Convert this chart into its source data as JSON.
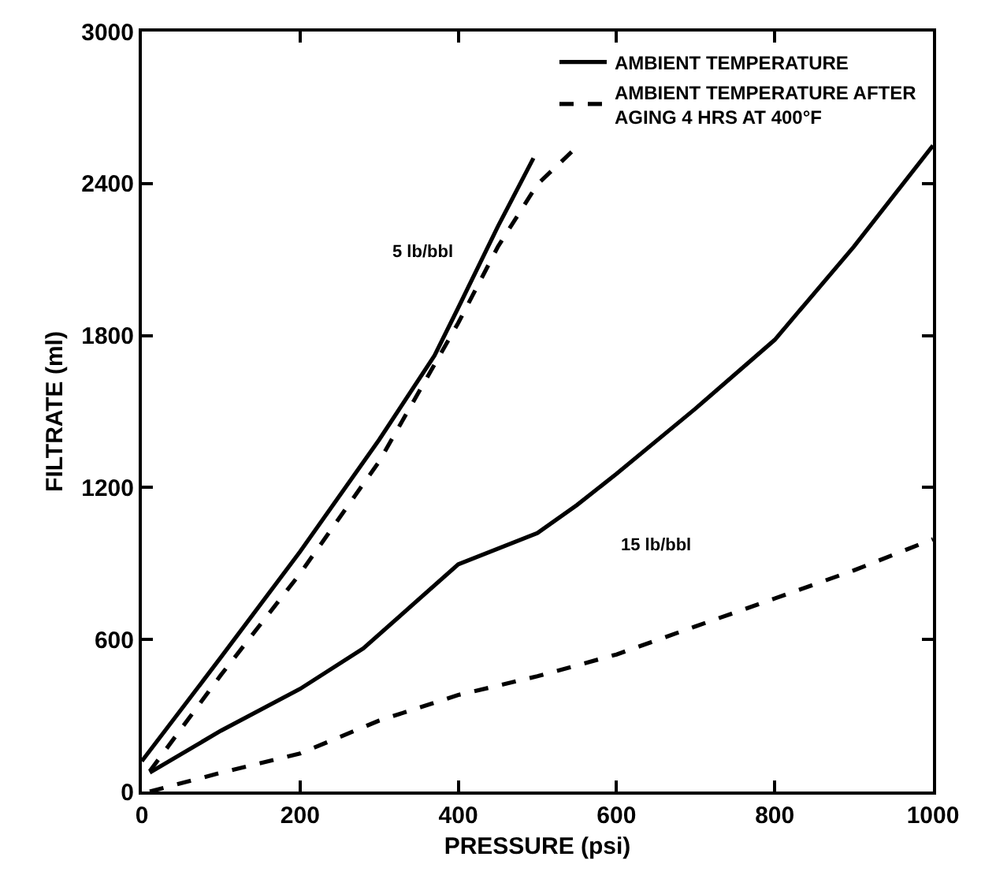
{
  "chart_data": {
    "type": "line",
    "xlabel": "PRESSURE (psi)",
    "ylabel": "FILTRATE (ml)",
    "xlim": [
      0,
      1000
    ],
    "xticks": [
      0,
      200,
      400,
      600,
      800,
      1000
    ],
    "ylim": [
      0,
      3000
    ],
    "yticks": [
      0,
      600,
      1200,
      1800,
      2400,
      3000
    ],
    "legend": "top right",
    "marker": "none",
    "series": [
      {
        "name": "AMBIENT TEMPERATURE",
        "color": "#000000",
        "line_style": "solid",
        "x": [
          0,
          100,
          200,
          300,
          370,
          400,
          450,
          495
        ],
        "values": [
          120,
          530,
          947,
          1389,
          1721,
          1910,
          2230,
          2500
        ]
      },
      {
        "name": "AMBIENT TEMPERATURE AFTER AGING 4 HRS AT 400°F",
        "color": "#000000",
        "line_style": "dashed",
        "x": [
          10,
          100,
          200,
          300,
          400,
          450,
          500,
          545
        ],
        "values": [
          80,
          460,
          860,
          1303,
          1850,
          2150,
          2397,
          2530
        ]
      },
      {
        "color": "#000000",
        "line_style": "solid",
        "x": [
          10,
          100,
          200,
          280,
          400,
          500,
          550,
          600,
          700,
          800,
          900,
          1000
        ],
        "values": [
          75,
          240,
          405,
          565,
          897,
          1020,
          1131,
          1254,
          1512,
          1783,
          2151,
          2550
        ]
      },
      {
        "color": "#000000",
        "line_style": "dashed",
        "x": [
          10,
          100,
          200,
          300,
          400,
          500,
          600,
          700,
          800,
          900,
          1000
        ],
        "values": [
          0,
          74,
          150,
          280,
          381,
          455,
          541,
          652,
          762,
          873,
          996
        ]
      }
    ],
    "annotations": [
      "5 lb/bbl",
      "15 lb/bbl"
    ]
  }
}
